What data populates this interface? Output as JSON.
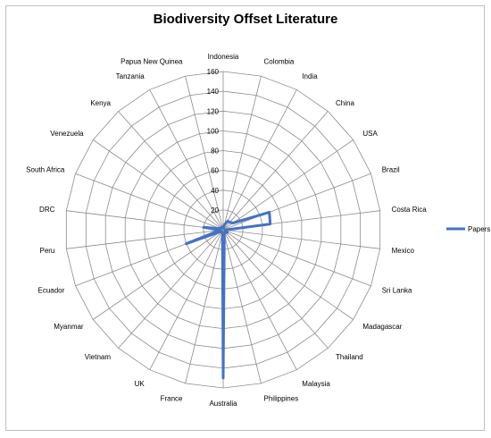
{
  "chart_data": {
    "type": "radar",
    "title": "Biodiversity Offset Literature",
    "categories": [
      "Indonesia",
      "Colombia",
      "India",
      "China",
      "USA",
      "Brazil",
      "Costa Rica",
      "Mexico",
      "Sri Lanka",
      "Madagascar",
      "Thailand",
      "Malaysia",
      "Philippines",
      "Australia",
      "France",
      "UK",
      "Vietnam",
      "Myanmar",
      "Ecuador",
      "Peru",
      "DRC",
      "South Africa",
      "Venezuela",
      "Kenya",
      "Tanzania",
      "Papua  New Quinea"
    ],
    "series": [
      {
        "name": "Papers",
        "values": [
          2,
          5,
          10,
          10,
          12,
          50,
          48,
          2,
          3,
          5,
          3,
          4,
          5,
          150,
          3,
          3,
          3,
          3,
          40,
          3,
          20,
          3,
          3,
          3,
          3,
          3
        ]
      }
    ],
    "rlim": [
      0,
      160
    ],
    "r_ticks": [
      0,
      20,
      40,
      60,
      80,
      100,
      120,
      140,
      160
    ],
    "legend_position": "right",
    "series_color": "#4472c4",
    "grid": true
  }
}
